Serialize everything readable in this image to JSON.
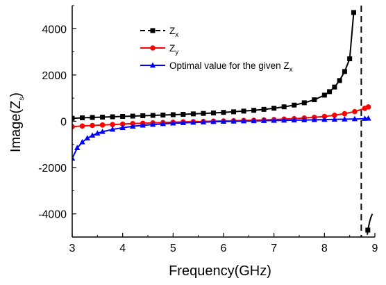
{
  "chart_data": {
    "type": "line",
    "xlabel": "Frequency(GHz)",
    "ylabel_main": "Image(Z",
    "ylabel_sub": "s",
    "ylabel_close": ")",
    "xlim": [
      3,
      9
    ],
    "ylim": [
      -5000,
      5000
    ],
    "x_ticks": [
      3,
      4,
      5,
      6,
      7,
      8,
      9
    ],
    "y_ticks": [
      -4000,
      -2000,
      0,
      2000,
      4000
    ],
    "x_tick_labels": [
      "3",
      "4",
      "5",
      "6",
      "7",
      "8",
      "9"
    ],
    "y_tick_labels": [
      "-4000",
      "-2000",
      "0",
      "2000",
      "4000"
    ],
    "legend_position": "top-center",
    "vertical_asymptote_x": 8.73,
    "series": [
      {
        "name_main": "Z",
        "name_sub": "x",
        "name_suffix": "",
        "color": "#000000",
        "marker": "square",
        "x": [
          3.0,
          3.2,
          3.4,
          3.6,
          3.8,
          4.0,
          4.2,
          4.4,
          4.6,
          4.8,
          5.0,
          5.2,
          5.4,
          5.6,
          5.8,
          6.0,
          6.2,
          6.4,
          6.6,
          6.8,
          7.0,
          7.2,
          7.4,
          7.6,
          7.8,
          8.0,
          8.1,
          8.2,
          8.3,
          8.4,
          8.5,
          8.58
        ],
        "y": [
          130,
          150,
          165,
          180,
          195,
          210,
          225,
          240,
          255,
          270,
          285,
          300,
          320,
          340,
          360,
          385,
          410,
          440,
          475,
          515,
          565,
          625,
          700,
          800,
          930,
          1130,
          1280,
          1480,
          1760,
          2150,
          2700,
          4700
        ],
        "marker_x": [
          3.0,
          3.2,
          3.4,
          3.6,
          3.8,
          4.0,
          4.2,
          4.4,
          4.6,
          4.8,
          5.0,
          5.2,
          5.4,
          5.6,
          5.8,
          6.0,
          6.2,
          6.4,
          6.6,
          6.8,
          7.0,
          7.2,
          7.4,
          7.6,
          7.8,
          8.0,
          8.1,
          8.2,
          8.3,
          8.4,
          8.5,
          8.58
        ],
        "branch2_x": [
          8.85,
          8.86,
          8.88,
          8.9,
          8.92,
          8.95
        ],
        "branch2_y": [
          -4900,
          -4700,
          -4500,
          -4300,
          -4150,
          -4000
        ],
        "branch2_marker_x": [
          8.86
        ]
      },
      {
        "name_main": "Z",
        "name_sub": "y",
        "name_suffix": "",
        "color": "#ff0000",
        "marker": "circle",
        "x": [
          3.0,
          3.2,
          3.4,
          3.6,
          3.8,
          4.0,
          4.2,
          4.4,
          4.6,
          4.8,
          5.0,
          5.2,
          5.4,
          5.6,
          5.8,
          6.0,
          6.2,
          6.4,
          6.6,
          6.8,
          7.0,
          7.2,
          7.4,
          7.6,
          7.8,
          8.0,
          8.2,
          8.4,
          8.6,
          8.8,
          8.87
        ],
        "y": [
          -230,
          -205,
          -180,
          -160,
          -140,
          -120,
          -100,
          -85,
          -70,
          -55,
          -40,
          -25,
          -15,
          -5,
          5,
          15,
          25,
          35,
          45,
          60,
          75,
          95,
          115,
          140,
          170,
          210,
          260,
          330,
          420,
          560,
          620
        ]
      },
      {
        "name_main": "Optimal value for the given Z",
        "name_sub": "x",
        "name_suffix": "",
        "color": "#0000ff",
        "marker": "triangle",
        "x": [
          3.0,
          3.1,
          3.2,
          3.3,
          3.4,
          3.5,
          3.6,
          3.8,
          4.0,
          4.2,
          4.4,
          4.6,
          4.8,
          5.0,
          5.2,
          5.4,
          5.6,
          5.8,
          6.0,
          6.2,
          6.4,
          6.6,
          6.8,
          7.0,
          7.2,
          7.4,
          7.6,
          7.8,
          8.0,
          8.2,
          8.4,
          8.6,
          8.8,
          8.87
        ],
        "y": [
          -1600,
          -1150,
          -900,
          -730,
          -610,
          -520,
          -450,
          -350,
          -280,
          -220,
          -175,
          -140,
          -110,
          -85,
          -65,
          -50,
          -35,
          -22,
          -10,
          0,
          10,
          18,
          25,
          33,
          40,
          48,
          55,
          63,
          72,
          80,
          90,
          100,
          115,
          125
        ]
      }
    ]
  }
}
